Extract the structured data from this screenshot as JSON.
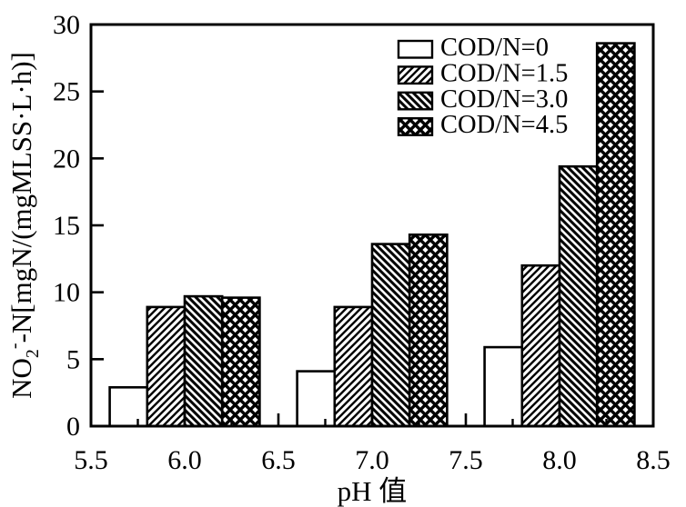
{
  "chart_data": {
    "type": "bar",
    "title": "",
    "xlabel": "pH 值",
    "ylabel": "NO₂⁻-N[mgN/(mgMLSS·L·h)]",
    "ylabel_parts": {
      "pre": "NO",
      "sub": "2",
      "sup": "-",
      "post": "-N[mgN/(mgMLSS·L·h)]"
    },
    "categories": [
      6.0,
      7.0,
      8.0
    ],
    "series": [
      {
        "name": "COD/N=0",
        "hatch": "none",
        "values": [
          2.9,
          4.1,
          5.9
        ]
      },
      {
        "name": "COD/N=1.5",
        "hatch": "forward",
        "values": [
          8.9,
          8.9,
          12.0
        ]
      },
      {
        "name": "COD/N=3.0",
        "hatch": "backward",
        "values": [
          9.7,
          13.6,
          19.4
        ]
      },
      {
        "name": "COD/N=4.5",
        "hatch": "cross",
        "values": [
          9.6,
          14.3,
          28.6
        ]
      }
    ],
    "bar_width": 0.2,
    "x_axis": {
      "min": 5.5,
      "max": 8.5,
      "major_ticks": [
        5.5,
        6.0,
        6.5,
        7.0,
        7.5,
        8.0,
        8.5
      ],
      "tick_labels": [
        "5.5",
        "6.0",
        "6.5",
        "7.0",
        "7.5",
        "8.0",
        "8.5"
      ],
      "minor_step": 0.25
    },
    "y_axis": {
      "min": 0,
      "max": 30,
      "major_ticks": [
        0,
        5,
        10,
        15,
        20,
        25,
        30
      ],
      "tick_labels": [
        "0",
        "5",
        "10",
        "15",
        "20",
        "25",
        "30"
      ]
    },
    "legend_position": "top-right",
    "grid": "off",
    "colors": {
      "foreground": "#000000",
      "background": "#ffffff"
    }
  }
}
